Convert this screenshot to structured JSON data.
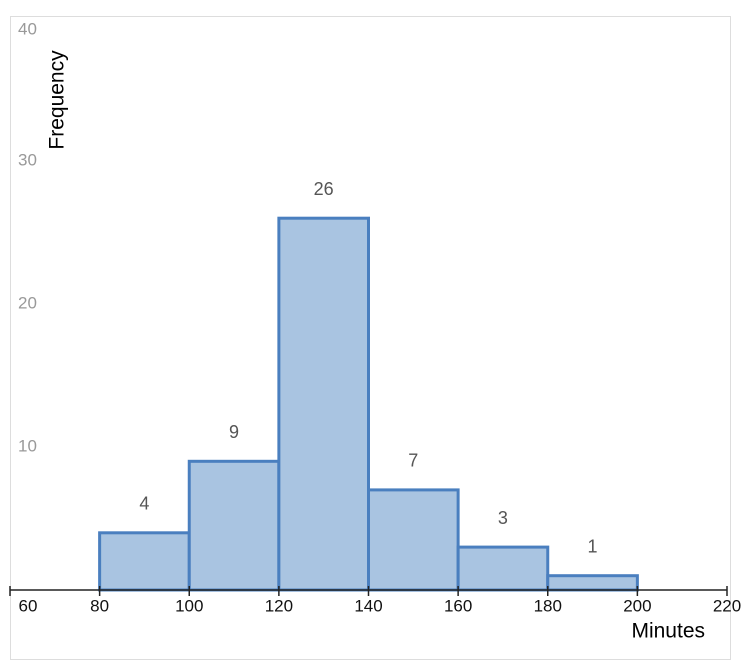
{
  "chart_data": {
    "type": "histogram",
    "x_label": "Minutes",
    "y_label": "Frequency",
    "bins": [
      80,
      100,
      120,
      140,
      160,
      180,
      200
    ],
    "values": [
      4,
      9,
      26,
      7,
      3,
      1
    ],
    "color": "#a9c4e1",
    "edge_color": "#4a7fbf",
    "xlim": [
      60,
      220
    ],
    "xticks": [
      60,
      80,
      100,
      120,
      140,
      160,
      180,
      200,
      220
    ],
    "ylim": [
      0,
      40
    ],
    "yticks": [
      10,
      20,
      30,
      40
    ],
    "grid": false
  }
}
